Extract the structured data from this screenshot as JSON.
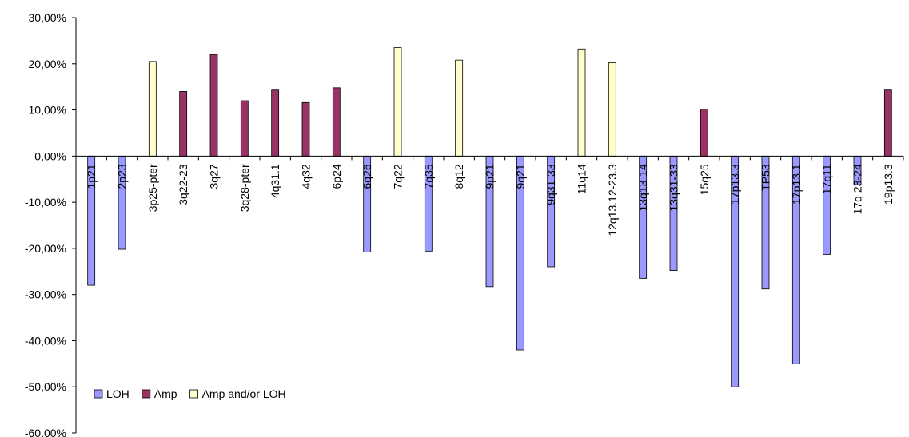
{
  "chart_data": {
    "type": "bar",
    "title": "",
    "xlabel": "",
    "ylabel": "",
    "ylim": [
      -60,
      30
    ],
    "y_ticks": [
      "30,00%",
      "20,00%",
      "10,00%",
      "0,00%",
      "-10,00%",
      "-20,00%",
      "-30,00%",
      "-40,00%",
      "-50,00%",
      "-60,00%"
    ],
    "y_tick_values": [
      30,
      20,
      10,
      0,
      -10,
      -20,
      -30,
      -40,
      -50,
      -60
    ],
    "grid": false,
    "legend_position": "bottom-left",
    "categories": [
      "1p21",
      "2p23",
      "3p25-pter",
      "3q22-23",
      "3q27",
      "3q28-pter",
      "4q31.1",
      "4q32",
      "6p24",
      "6q26",
      "7q22",
      "7q35",
      "8q12",
      "9p21",
      "9q21",
      "9q31-33",
      "11q14",
      "12q13.12-23.3",
      "13q13-14",
      "13q31-33",
      "15q25",
      "17p13.3",
      "TP53",
      "17p13.1",
      "17q11",
      "17q 23-24",
      "19p13.3"
    ],
    "series": [
      {
        "name": "LOH",
        "color": "#9999ff",
        "values": [
          -28,
          -20.2,
          null,
          null,
          null,
          null,
          null,
          null,
          null,
          -20.8,
          null,
          -20.6,
          null,
          -28.3,
          -42,
          -24,
          null,
          null,
          -26.5,
          -24.8,
          null,
          -50,
          -28.8,
          -45,
          -21.3,
          -6.2,
          null
        ]
      },
      {
        "name": "Amp",
        "color": "#993366",
        "values": [
          null,
          null,
          null,
          14,
          22,
          12,
          14.3,
          11.6,
          14.8,
          null,
          null,
          null,
          null,
          null,
          null,
          null,
          null,
          null,
          null,
          null,
          10.2,
          null,
          null,
          null,
          null,
          null,
          14.3
        ]
      },
      {
        "name": "Amp and/or LOH",
        "color": "#ffffcc",
        "values": [
          null,
          null,
          20.5,
          null,
          null,
          null,
          null,
          null,
          null,
          null,
          23.5,
          null,
          20.8,
          null,
          null,
          null,
          23.2,
          20.2,
          null,
          null,
          null,
          null,
          null,
          null,
          null,
          null,
          null
        ]
      }
    ]
  }
}
